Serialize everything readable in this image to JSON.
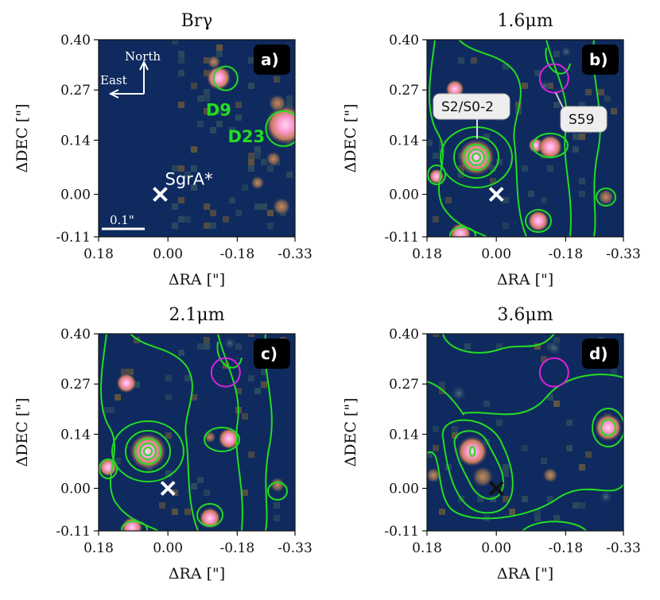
{
  "chart_data": [
    {
      "type": "heatmap",
      "title": "Brγ",
      "panel_label": "a)",
      "xlabel": "ΔRA [\"]",
      "ylabel": "ΔDEC [\"]",
      "xlim": [
        0.18,
        -0.33
      ],
      "ylim": [
        -0.11,
        0.4
      ],
      "xticks": [
        "0.18",
        "0.00",
        "-0.18",
        "-0.33"
      ],
      "yticks": [
        "0.40",
        "0.27",
        "0.14",
        "0.00",
        "-0.11"
      ],
      "compass": {
        "north": "North",
        "east": "East"
      },
      "scalebar": "0.1\"",
      "sources": [
        {
          "name": "D9",
          "x": -0.15,
          "y": 0.3
        },
        {
          "name": "D23",
          "x": -0.3,
          "y": 0.17
        },
        {
          "name": "SgrA*",
          "x": 0.02,
          "y": 0.0
        }
      ]
    },
    {
      "type": "heatmap",
      "title": "1.6μm",
      "panel_label": "b)",
      "xlabel": "ΔRA [\"]",
      "ylabel": "ΔDEC [\"]",
      "xlim": [
        0.18,
        -0.33
      ],
      "ylim": [
        -0.11,
        0.4
      ],
      "xticks": [
        "0.18",
        "0.00",
        "-0.18",
        "-0.33"
      ],
      "yticks": [
        "0.40",
        "0.27",
        "0.14",
        "0.00",
        "-0.11"
      ],
      "annotations": [
        "S2/S0-2",
        "S59"
      ],
      "sources": [
        {
          "name": "S2/S0-2",
          "x": 0.05,
          "y": 0.09
        },
        {
          "name": "S59",
          "x": -0.15,
          "y": 0.3
        },
        {
          "name": "SgrA*",
          "x": 0.0,
          "y": 0.0
        }
      ]
    },
    {
      "type": "heatmap",
      "title": "2.1μm",
      "panel_label": "c)",
      "xlabel": "ΔRA [\"]",
      "ylabel": "ΔDEC [\"]",
      "xlim": [
        0.18,
        -0.33
      ],
      "ylim": [
        -0.11,
        0.4
      ],
      "xticks": [
        "0.18",
        "0.00",
        "-0.18",
        "-0.33"
      ],
      "yticks": [
        "0.40",
        "0.27",
        "0.14",
        "0.00",
        "-0.11"
      ],
      "sources": [
        {
          "name": "S2/S0-2",
          "x": 0.05,
          "y": 0.09
        },
        {
          "name": "S59",
          "x": -0.15,
          "y": 0.3
        },
        {
          "name": "SgrA*",
          "x": 0.0,
          "y": 0.0
        }
      ]
    },
    {
      "type": "heatmap",
      "title": "3.6μm",
      "panel_label": "d)",
      "xlabel": "ΔRA [\"]",
      "ylabel": "ΔDEC [\"]",
      "xlim": [
        0.18,
        -0.33
      ],
      "ylim": [
        -0.11,
        0.4
      ],
      "xticks": [
        "0.18",
        "0.00",
        "-0.18",
        "-0.33"
      ],
      "yticks": [
        "0.40",
        "0.27",
        "0.14",
        "0.00",
        "-0.11"
      ],
      "sources": [
        {
          "name": "S59",
          "x": -0.15,
          "y": 0.3
        },
        {
          "name": "SgrA*",
          "x": 0.0,
          "y": 0.0
        }
      ]
    }
  ],
  "colors": {
    "background": "#0f2a5e",
    "contour": "#22dd22",
    "marker": "#ffffff",
    "marker_dark": "#111111",
    "circle_magenta": "#dd22dd",
    "label_green": "#22dd22"
  }
}
